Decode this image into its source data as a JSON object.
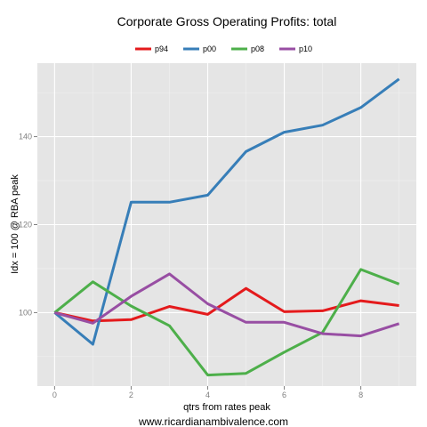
{
  "chart_data": {
    "type": "line",
    "title": "Corporate Gross Operating Profits: total",
    "xlabel": "qtrs from rates peak",
    "ylabel": "Idx = 100 @ RBA peak",
    "caption": "www.ricardianambivalence.com",
    "x": [
      0,
      1,
      2,
      3,
      4,
      5,
      6,
      7,
      8,
      9
    ],
    "xlim": [
      -0.45,
      9.45
    ],
    "ylim": [
      83.3,
      156.7
    ],
    "xticks": [
      "0",
      "2",
      "4",
      "6",
      "8"
    ],
    "xtick_values": [
      0,
      2,
      4,
      6,
      8
    ],
    "yticks": [
      "100",
      "120",
      "140"
    ],
    "ytick_values": [
      100,
      120,
      140
    ],
    "grid": true,
    "legend_position": "top",
    "series": [
      {
        "name": "p94",
        "color": "#e41a1c",
        "values": [
          100,
          98.1,
          98.4,
          101.4,
          99.6,
          105.5,
          100.2,
          100.4,
          102.7,
          101.6
        ]
      },
      {
        "name": "p00",
        "color": "#377eb8",
        "values": [
          100,
          92.8,
          125.1,
          125.1,
          126.7,
          136.6,
          141.0,
          142.6,
          146.6,
          153.1
        ]
      },
      {
        "name": "p08",
        "color": "#4daf4a",
        "values": [
          100,
          107.0,
          101.5,
          97.0,
          85.8,
          86.2,
          91.0,
          95.5,
          109.8,
          106.5
        ]
      },
      {
        "name": "p10",
        "color": "#984ea3",
        "values": [
          100,
          97.6,
          103.7,
          108.8,
          102.0,
          97.8,
          97.8,
          95.2,
          94.7,
          97.5
        ]
      }
    ]
  }
}
